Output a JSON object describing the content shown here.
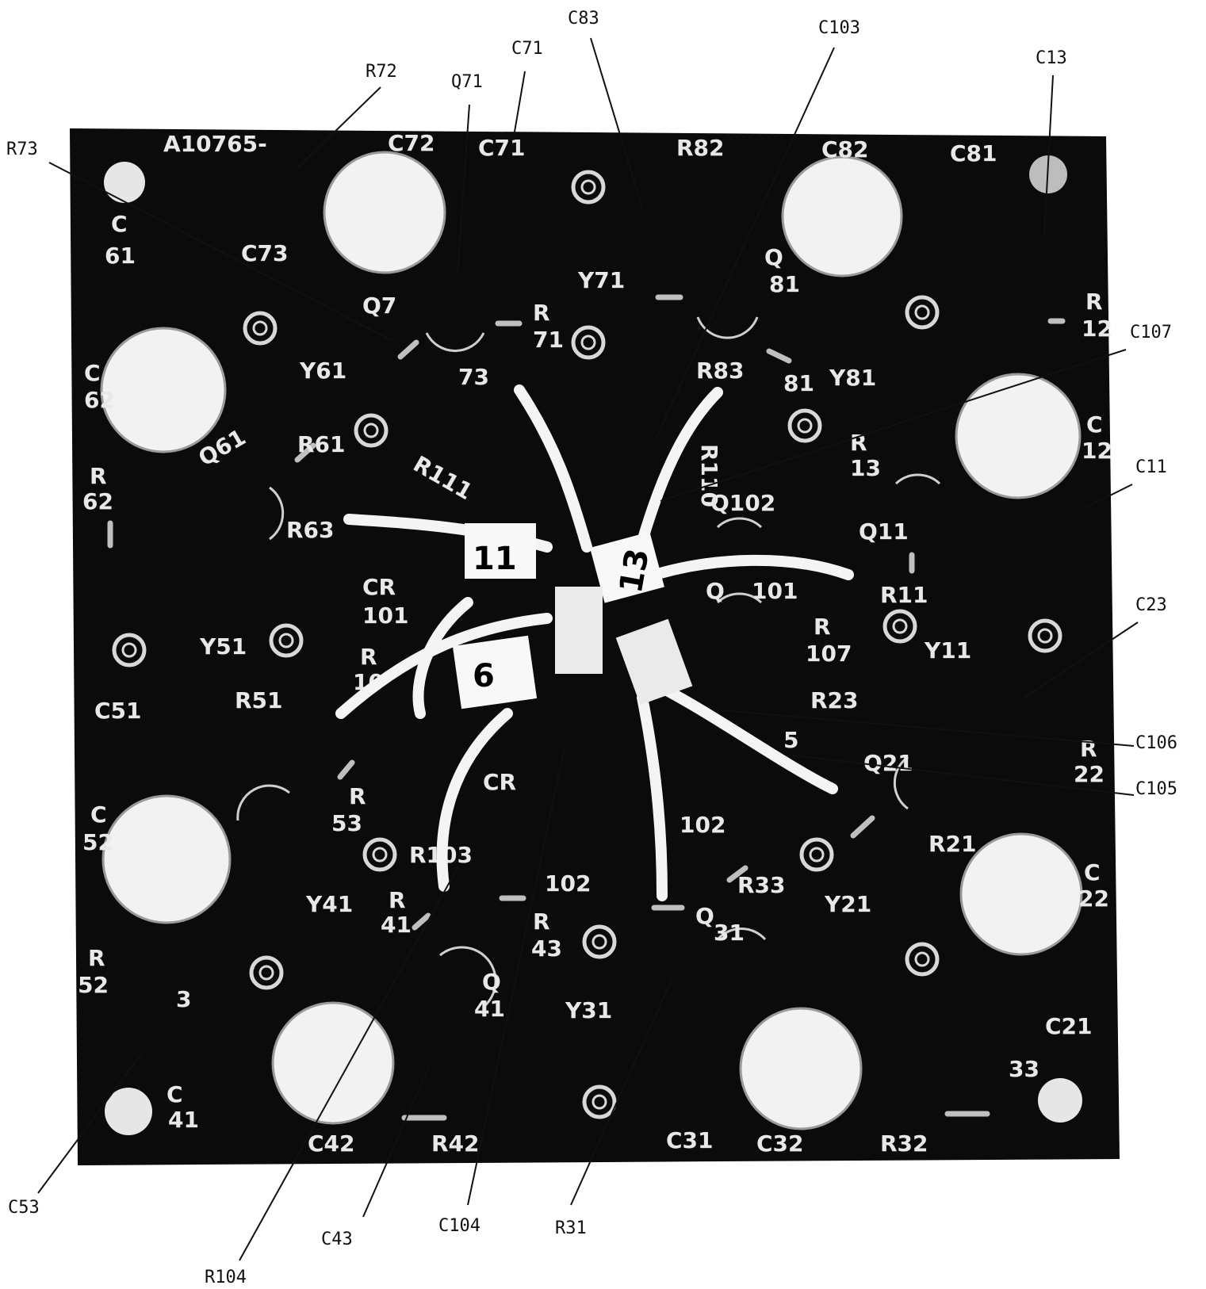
{
  "callouts": [
    {
      "id": "R73",
      "label": "R73"
    },
    {
      "id": "R72",
      "label": "R72"
    },
    {
      "id": "Q71",
      "label": "Q71"
    },
    {
      "id": "C71",
      "label": "C71"
    },
    {
      "id": "C83",
      "label": "C83"
    },
    {
      "id": "C103",
      "label": "C103"
    },
    {
      "id": "C13",
      "label": "C13"
    },
    {
      "id": "C107",
      "label": "C107"
    },
    {
      "id": "C11",
      "label": "C11"
    },
    {
      "id": "C23",
      "label": "C23"
    },
    {
      "id": "C106",
      "label": "C106"
    },
    {
      "id": "C105",
      "label": "C105"
    },
    {
      "id": "C53",
      "label": "C53"
    },
    {
      "id": "R104",
      "label": "R104"
    },
    {
      "id": "C43",
      "label": "C43"
    },
    {
      "id": "C104",
      "label": "C104"
    },
    {
      "id": "R31",
      "label": "R31"
    }
  ],
  "board": {
    "part_number": "A10765-",
    "silkscreen": [
      "C72",
      "C71",
      "R82",
      "C82",
      "C81",
      "C",
      "61",
      "C73",
      "Q7",
      "Y71",
      "Q",
      "81",
      "R",
      "12",
      "R",
      "71",
      "73",
      "Y61",
      "C",
      "62",
      "Q61",
      "R61",
      "R111",
      "R83",
      "81",
      "Y81",
      "R110",
      "R",
      "13",
      "C",
      "12",
      "Q102",
      "Q11",
      "R",
      "62",
      "R63",
      "CR",
      "101",
      "Q",
      "101",
      "R11",
      "Y51",
      "R",
      "107",
      "Y11",
      "C51",
      "R51",
      "R",
      "10",
      "R23",
      "R",
      "53",
      "5",
      "Q21",
      "R",
      "22",
      "C",
      "52",
      "CR",
      "102",
      "R21",
      "R103",
      "102",
      "R33",
      "Y41",
      "R",
      "41",
      "R",
      "43",
      "Q",
      "31",
      "Y21",
      "C",
      "22",
      "R",
      "52",
      "3",
      "Q",
      "41",
      "Y31",
      "C21",
      "C",
      "41",
      "33",
      "C42",
      "R42",
      "C31",
      "C32",
      "R32"
    ],
    "wire_tags": [
      "11",
      "13",
      "6"
    ]
  }
}
